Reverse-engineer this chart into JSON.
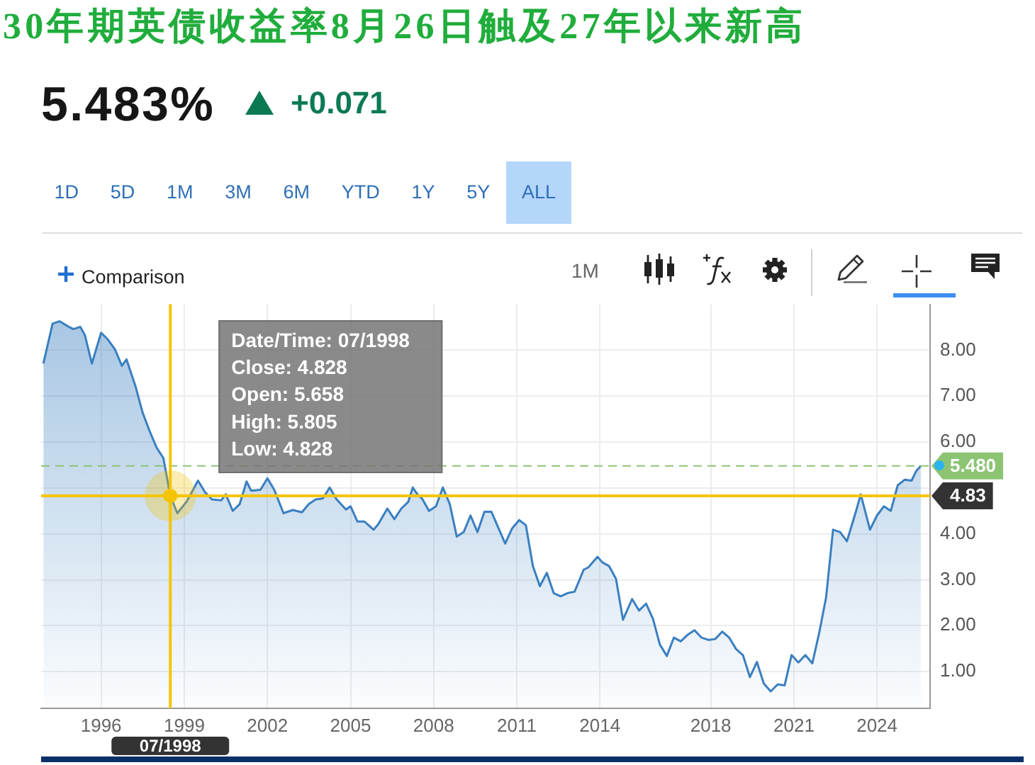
{
  "chart_data": {
    "type": "area",
    "title": "30年期英债收益率8月26日触及27年以来新高",
    "subtitle": "5.483%",
    "x": [
      "1993-12",
      "1994-04",
      "1994-07",
      "1994-11",
      "1995-01",
      "1995-04",
      "1995-06",
      "1995-09",
      "1996-01",
      "1996-04",
      "1996-07",
      "1996-10",
      "1996-12",
      "1997-04",
      "1997-07",
      "1997-10",
      "1998-01",
      "1998-04",
      "1998-07",
      "1998-10",
      "1999-02",
      "1999-07",
      "1999-10",
      "2000-01",
      "2000-05",
      "2000-07",
      "2000-10",
      "2001-01",
      "2001-04",
      "2001-06",
      "2001-10",
      "2002-01",
      "2002-04",
      "2002-08",
      "2002-12",
      "2003-04",
      "2003-07",
      "2003-10",
      "2004-01",
      "2004-04",
      "2004-07",
      "2004-11",
      "2005-01",
      "2005-04",
      "2005-07",
      "2005-11",
      "2006-01",
      "2006-05",
      "2006-08",
      "2006-11",
      "2007-02",
      "2007-04",
      "2007-06",
      "2007-08",
      "2007-11",
      "2008-02",
      "2008-05",
      "2008-08",
      "2008-11",
      "2009-02",
      "2009-05",
      "2009-08",
      "2009-11",
      "2010-02",
      "2010-05",
      "2010-08",
      "2010-11",
      "2011-02",
      "2011-05",
      "2011-08",
      "2011-11",
      "2012-02",
      "2012-05",
      "2012-08",
      "2012-11",
      "2013-02",
      "2013-06",
      "2013-08",
      "2013-12",
      "2014-02",
      "2014-05",
      "2014-08",
      "2014-11",
      "2015-03",
      "2015-06",
      "2015-09",
      "2015-12",
      "2016-03",
      "2016-06",
      "2016-09",
      "2016-12",
      "2017-03",
      "2017-06",
      "2017-09",
      "2017-12",
      "2018-03",
      "2018-06",
      "2018-09",
      "2018-12",
      "2019-03",
      "2019-06",
      "2019-09",
      "2019-12",
      "2020-03",
      "2020-06",
      "2020-09",
      "2020-12",
      "2021-03",
      "2021-06",
      "2021-09",
      "2021-12",
      "2022-03",
      "2022-06",
      "2022-09",
      "2022-12",
      "2023-04",
      "2023-06",
      "2023-10",
      "2024-01",
      "2024-04",
      "2024-07",
      "2024-10",
      "2025-01",
      "2025-04",
      "2025-06",
      "2025-08"
    ],
    "values": [
      7.71,
      8.58,
      8.63,
      8.51,
      8.46,
      8.51,
      8.33,
      7.71,
      8.38,
      8.23,
      8.02,
      7.66,
      7.8,
      7.2,
      6.64,
      6.24,
      5.88,
      5.65,
      4.828,
      4.45,
      4.7,
      5.16,
      4.91,
      4.75,
      4.73,
      4.86,
      4.5,
      4.65,
      5.14,
      4.94,
      4.96,
      5.21,
      4.96,
      4.45,
      4.52,
      4.47,
      4.65,
      4.75,
      4.77,
      5.01,
      4.75,
      4.53,
      4.6,
      4.27,
      4.27,
      4.09,
      4.21,
      4.55,
      4.32,
      4.55,
      4.7,
      5.01,
      4.86,
      4.77,
      4.5,
      4.6,
      5.01,
      4.65,
      3.94,
      4.04,
      4.4,
      4.04,
      4.48,
      4.48,
      4.14,
      3.79,
      4.12,
      4.3,
      4.19,
      3.3,
      2.86,
      3.15,
      2.71,
      2.64,
      2.71,
      2.74,
      3.22,
      3.27,
      3.5,
      3.38,
      3.3,
      3.02,
      2.13,
      2.58,
      2.33,
      2.48,
      2.15,
      1.59,
      1.34,
      1.74,
      1.66,
      1.8,
      1.9,
      1.74,
      1.69,
      1.71,
      1.87,
      1.74,
      1.49,
      1.36,
      0.88,
      1.21,
      0.74,
      0.57,
      0.72,
      0.7,
      1.36,
      1.2,
      1.36,
      1.18,
      1.85,
      2.61,
      4.09,
      4.04,
      3.84,
      4.5,
      4.86,
      4.09,
      4.4,
      4.6,
      4.5,
      5.06,
      5.18,
      5.16,
      5.37,
      5.48
    ],
    "color": "#3a7fc0",
    "xlim": [
      "1993-11",
      "2025-12"
    ],
    "xticks": [
      "1996",
      "1999",
      "2002",
      "2005",
      "2008",
      "2011",
      "2014",
      "2018",
      "2021",
      "2024"
    ],
    "ylim": [
      0.2,
      9
    ],
    "yticks": [
      {
        "value": 1,
        "label": "1.00"
      },
      {
        "value": 2,
        "label": "2.00"
      },
      {
        "value": 3,
        "label": "3.00"
      },
      {
        "value": 4,
        "label": "4.00"
      },
      {
        "value": 5,
        "label": null
      },
      {
        "value": 6,
        "label": "6.00"
      },
      {
        "value": 7,
        "label": "7.00"
      },
      {
        "value": 8,
        "label": "8.00"
      }
    ],
    "grid": true,
    "ref_lines": [
      {
        "axis": "y",
        "value": 5.48,
        "label": "5.480",
        "color": "#8cc474",
        "line_style": "dashed"
      },
      {
        "axis": "y",
        "value": 4.83,
        "label": "4.83",
        "color": "#f5c400"
      },
      {
        "axis": "x",
        "value": "1998-07",
        "label": "07/1998",
        "color": "#f5c400"
      }
    ],
    "annotations": [
      "+0.071",
      "1D",
      "5D",
      "1M",
      "3M",
      "6M",
      "YTD",
      "1Y",
      "5Y",
      "ALL",
      "Comparison",
      "1M",
      "Date/Time: 07/1998\nClose: 4.828\nOpen: 5.658\nHigh: 5.805\nLow: 4.828"
    ]
  }
}
